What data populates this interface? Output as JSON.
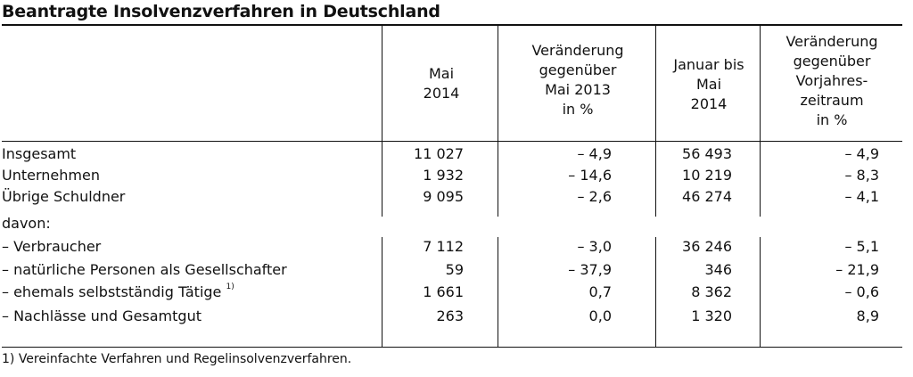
{
  "title": "Beantragte Insolvenzverfahren in Deutschland",
  "columns": [
    "Mai\n2014",
    "Veränderung\ngegenüber\nMai 2013\nin %",
    "Januar bis\nMai\n2014",
    "Veränderung\ngegenüber\nVorjahres-\nzeitraum\nin %"
  ],
  "rows": [
    {
      "label": "Insgesamt",
      "values": [
        "11 027",
        "– 4,9",
        "56 493",
        "– 4,9"
      ]
    },
    {
      "label": "Unternehmen",
      "values": [
        "1 932",
        "– 14,6",
        "10 219",
        "– 8,3"
      ]
    },
    {
      "label": "Übrige Schuldner",
      "values": [
        "9 095",
        "– 2,6",
        "46 274",
        "– 4,1"
      ]
    },
    {
      "label": "davon:",
      "values": [
        "",
        "",
        "",
        ""
      ]
    },
    {
      "label": "– Verbraucher",
      "values": [
        "7 112",
        "– 3,0",
        "36 246",
        "– 5,1"
      ]
    },
    {
      "label": "– natürliche Personen als Gesellschafter",
      "values": [
        "59",
        "– 37,9",
        "346",
        "– 21,9"
      ]
    },
    {
      "label": "– ehemals selbstständig Tätige",
      "sup": "1)",
      "values": [
        "1 661",
        "0,7",
        "8 362",
        "– 0,6"
      ]
    },
    {
      "label": "– Nachlässe und Gesamtgut",
      "values": [
        "263",
        "0,0",
        "1 320",
        "8,9"
      ]
    }
  ],
  "footnote": "1) Vereinfachte Verfahren und Regelinsolvenzverfahren."
}
